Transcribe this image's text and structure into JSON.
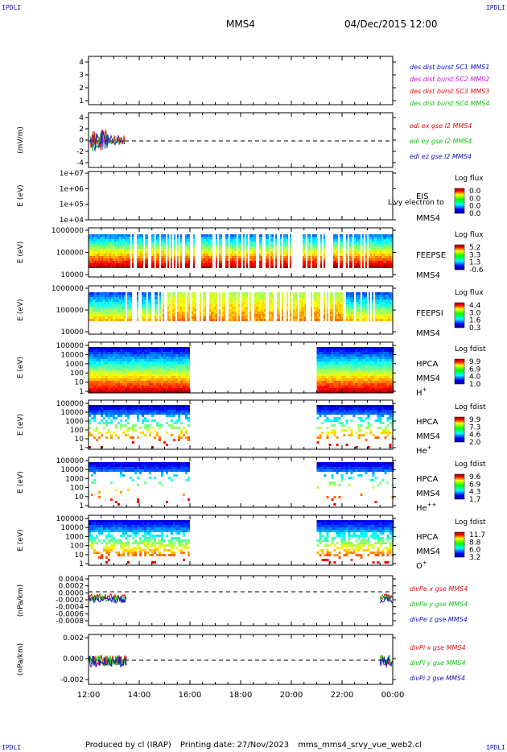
{
  "corners": {
    "tl": "IPDLI",
    "tr": "IPDLI",
    "bl": "IPDLI",
    "br": "IPDLI"
  },
  "header": {
    "spacecraft": "MMS4",
    "datetime": "04/Dec/2015 12:00"
  },
  "footer": {
    "producer": "Produced by cl (IRAP)",
    "printing": "Printing date: 27/Nov/2023",
    "file": "mms_mms4_srvy_vue_web2.cl"
  },
  "colors": {
    "red": "#e01010",
    "green": "#10c010",
    "blue": "#1010c0",
    "magenta": "#d010d0"
  },
  "chart_data": [
    {
      "id": "p1",
      "type": "line",
      "ylabel": "",
      "yticks": [
        "1",
        "2",
        "3",
        "4"
      ],
      "ylim": [
        0.5,
        4.5
      ],
      "legend": [
        {
          "text": "des dist burst SC1 MMS1",
          "color": "blue"
        },
        {
          "text": "des dist burst SC2 MMS2",
          "color": "magenta"
        },
        {
          "text": "des dist burst SC3 MMS3",
          "color": "red"
        },
        {
          "text": "des dist burst SC4 MMS4",
          "color": "green"
        }
      ]
    },
    {
      "id": "p2",
      "type": "line",
      "ylabel": "(mV/m)",
      "yticks": [
        "-4",
        "-2",
        "0",
        "2",
        "4"
      ],
      "ylim": [
        -4.5,
        4.5
      ],
      "zero_line": true,
      "data_range_hours": [
        0,
        1.5
      ],
      "legend": [
        {
          "text": "edi ex gse l2 MMS4",
          "color": "red"
        },
        {
          "text": "edi ey gse l2 MMS4",
          "color": "green"
        },
        {
          "text": "edi ez gse l2 MMS4",
          "color": "blue"
        }
      ]
    },
    {
      "id": "p3",
      "type": "heatmap",
      "ylabel": "E (eV)",
      "yticks": [
        "1e+04",
        "1e+05",
        "1e+06",
        "1e+07"
      ],
      "ylim": [
        10000,
        10000000
      ],
      "labels": [
        "EIS",
        "MMS4"
      ],
      "overlay": "Llvy electron to",
      "cbar_title": "Log flux",
      "cbar_values": [
        "0.0",
        "0.0",
        "0.0",
        "0.0"
      ]
    },
    {
      "id": "p4",
      "type": "heatmap",
      "ylabel": "E (eV)",
      "yticks": [
        "1000000",
        "100000",
        "10000"
      ],
      "ylim": [
        10000,
        1000000
      ],
      "labels": [
        "FEEPSE",
        "MMS4"
      ],
      "cbar_title": "Log flux",
      "cbar_values": [
        "5.2",
        "3.3",
        "1.3",
        "-0.6"
      ]
    },
    {
      "id": "p5",
      "type": "heatmap",
      "ylabel": "E (eV)",
      "yticks": [
        "1000000",
        "100000",
        "10000"
      ],
      "ylim": [
        10000,
        1000000
      ],
      "labels": [
        "FEEPSI",
        "MMS4"
      ],
      "cbar_title": "Log flux",
      "cbar_values": [
        "4.4",
        "3.0",
        "1.6",
        "0.3"
      ]
    },
    {
      "id": "p6",
      "type": "heatmap",
      "ylabel": "E (eV)",
      "yticks": [
        "100000",
        "10000",
        "1000",
        "100",
        "10",
        "1"
      ],
      "ylim": [
        1,
        100000
      ],
      "labels": [
        "HPCA",
        "MMS4",
        "H+"
      ],
      "cbar_title": "Log fdist",
      "cbar_values": [
        "9.9",
        "6.9",
        "4.0",
        "1.0"
      ],
      "data_range_hours": [
        [
          0,
          3.95
        ],
        [
          9,
          12
        ]
      ]
    },
    {
      "id": "p7",
      "type": "heatmap",
      "ylabel": "E (eV)",
      "yticks": [
        "100000",
        "10000",
        "1000",
        "100",
        "10",
        "1"
      ],
      "ylim": [
        1,
        100000
      ],
      "labels": [
        "HPCA",
        "MMS4",
        "He+"
      ],
      "cbar_title": "Log fdist",
      "cbar_values": [
        "9.9",
        "7.3",
        "4.6",
        "2.0"
      ],
      "data_range_hours": [
        [
          0,
          3.95
        ],
        [
          9,
          12
        ]
      ]
    },
    {
      "id": "p8",
      "type": "heatmap",
      "ylabel": "E (eV)",
      "yticks": [
        "100000",
        "10000",
        "1000",
        "100",
        "10",
        "1"
      ],
      "ylim": [
        1,
        100000
      ],
      "labels": [
        "HPCA",
        "MMS4",
        "He++"
      ],
      "cbar_title": "Log fdist",
      "cbar_values": [
        "9.6",
        "6.9",
        "4.3",
        "1.7"
      ],
      "data_range_hours": [
        [
          0,
          3.95
        ],
        [
          9,
          12
        ]
      ]
    },
    {
      "id": "p9",
      "type": "heatmap",
      "ylabel": "E (eV)",
      "yticks": [
        "100000",
        "10000",
        "1000",
        "100",
        "10",
        "1"
      ],
      "ylim": [
        1,
        100000
      ],
      "labels": [
        "HPCA",
        "MMS4",
        "O+"
      ],
      "cbar_title": "Log fdist",
      "cbar_values": [
        "11.7",
        "8.8",
        "6.0",
        "3.2"
      ],
      "data_range_hours": [
        [
          0,
          3.95
        ],
        [
          9,
          12
        ]
      ]
    },
    {
      "id": "p10",
      "type": "line",
      "ylabel": "(nPa/km)",
      "yticks": [
        "0.0004",
        "0.0002",
        "0.0000",
        "-0.0002",
        "-0.0004",
        "-0.0006",
        "-0.0008"
      ],
      "ylim": [
        -0.0009,
        0.0004
      ],
      "zero_line": true,
      "legend": [
        {
          "text": "divPe x gse MMS4",
          "color": "red"
        },
        {
          "text": "divPe y gse MMS4",
          "color": "green"
        },
        {
          "text": "divPe z gse MMS4",
          "color": "blue"
        }
      ]
    },
    {
      "id": "p11",
      "type": "line",
      "ylabel": "(nPa/km)",
      "yticks": [
        "0.002",
        "0.000",
        "-0.002"
      ],
      "ylim": [
        -0.0035,
        0.0035
      ],
      "zero_line": true,
      "legend": [
        {
          "text": "divPi x gse MMS4",
          "color": "red"
        },
        {
          "text": "divPi y gse MMS4",
          "color": "green"
        },
        {
          "text": "divPi z gse MMS4",
          "color": "blue"
        }
      ]
    }
  ],
  "xaxis": {
    "ticks": [
      "12:00",
      "14:00",
      "16:00",
      "18:00",
      "20:00",
      "22:00",
      "00:00"
    ],
    "range_hours": [
      12,
      24
    ]
  }
}
